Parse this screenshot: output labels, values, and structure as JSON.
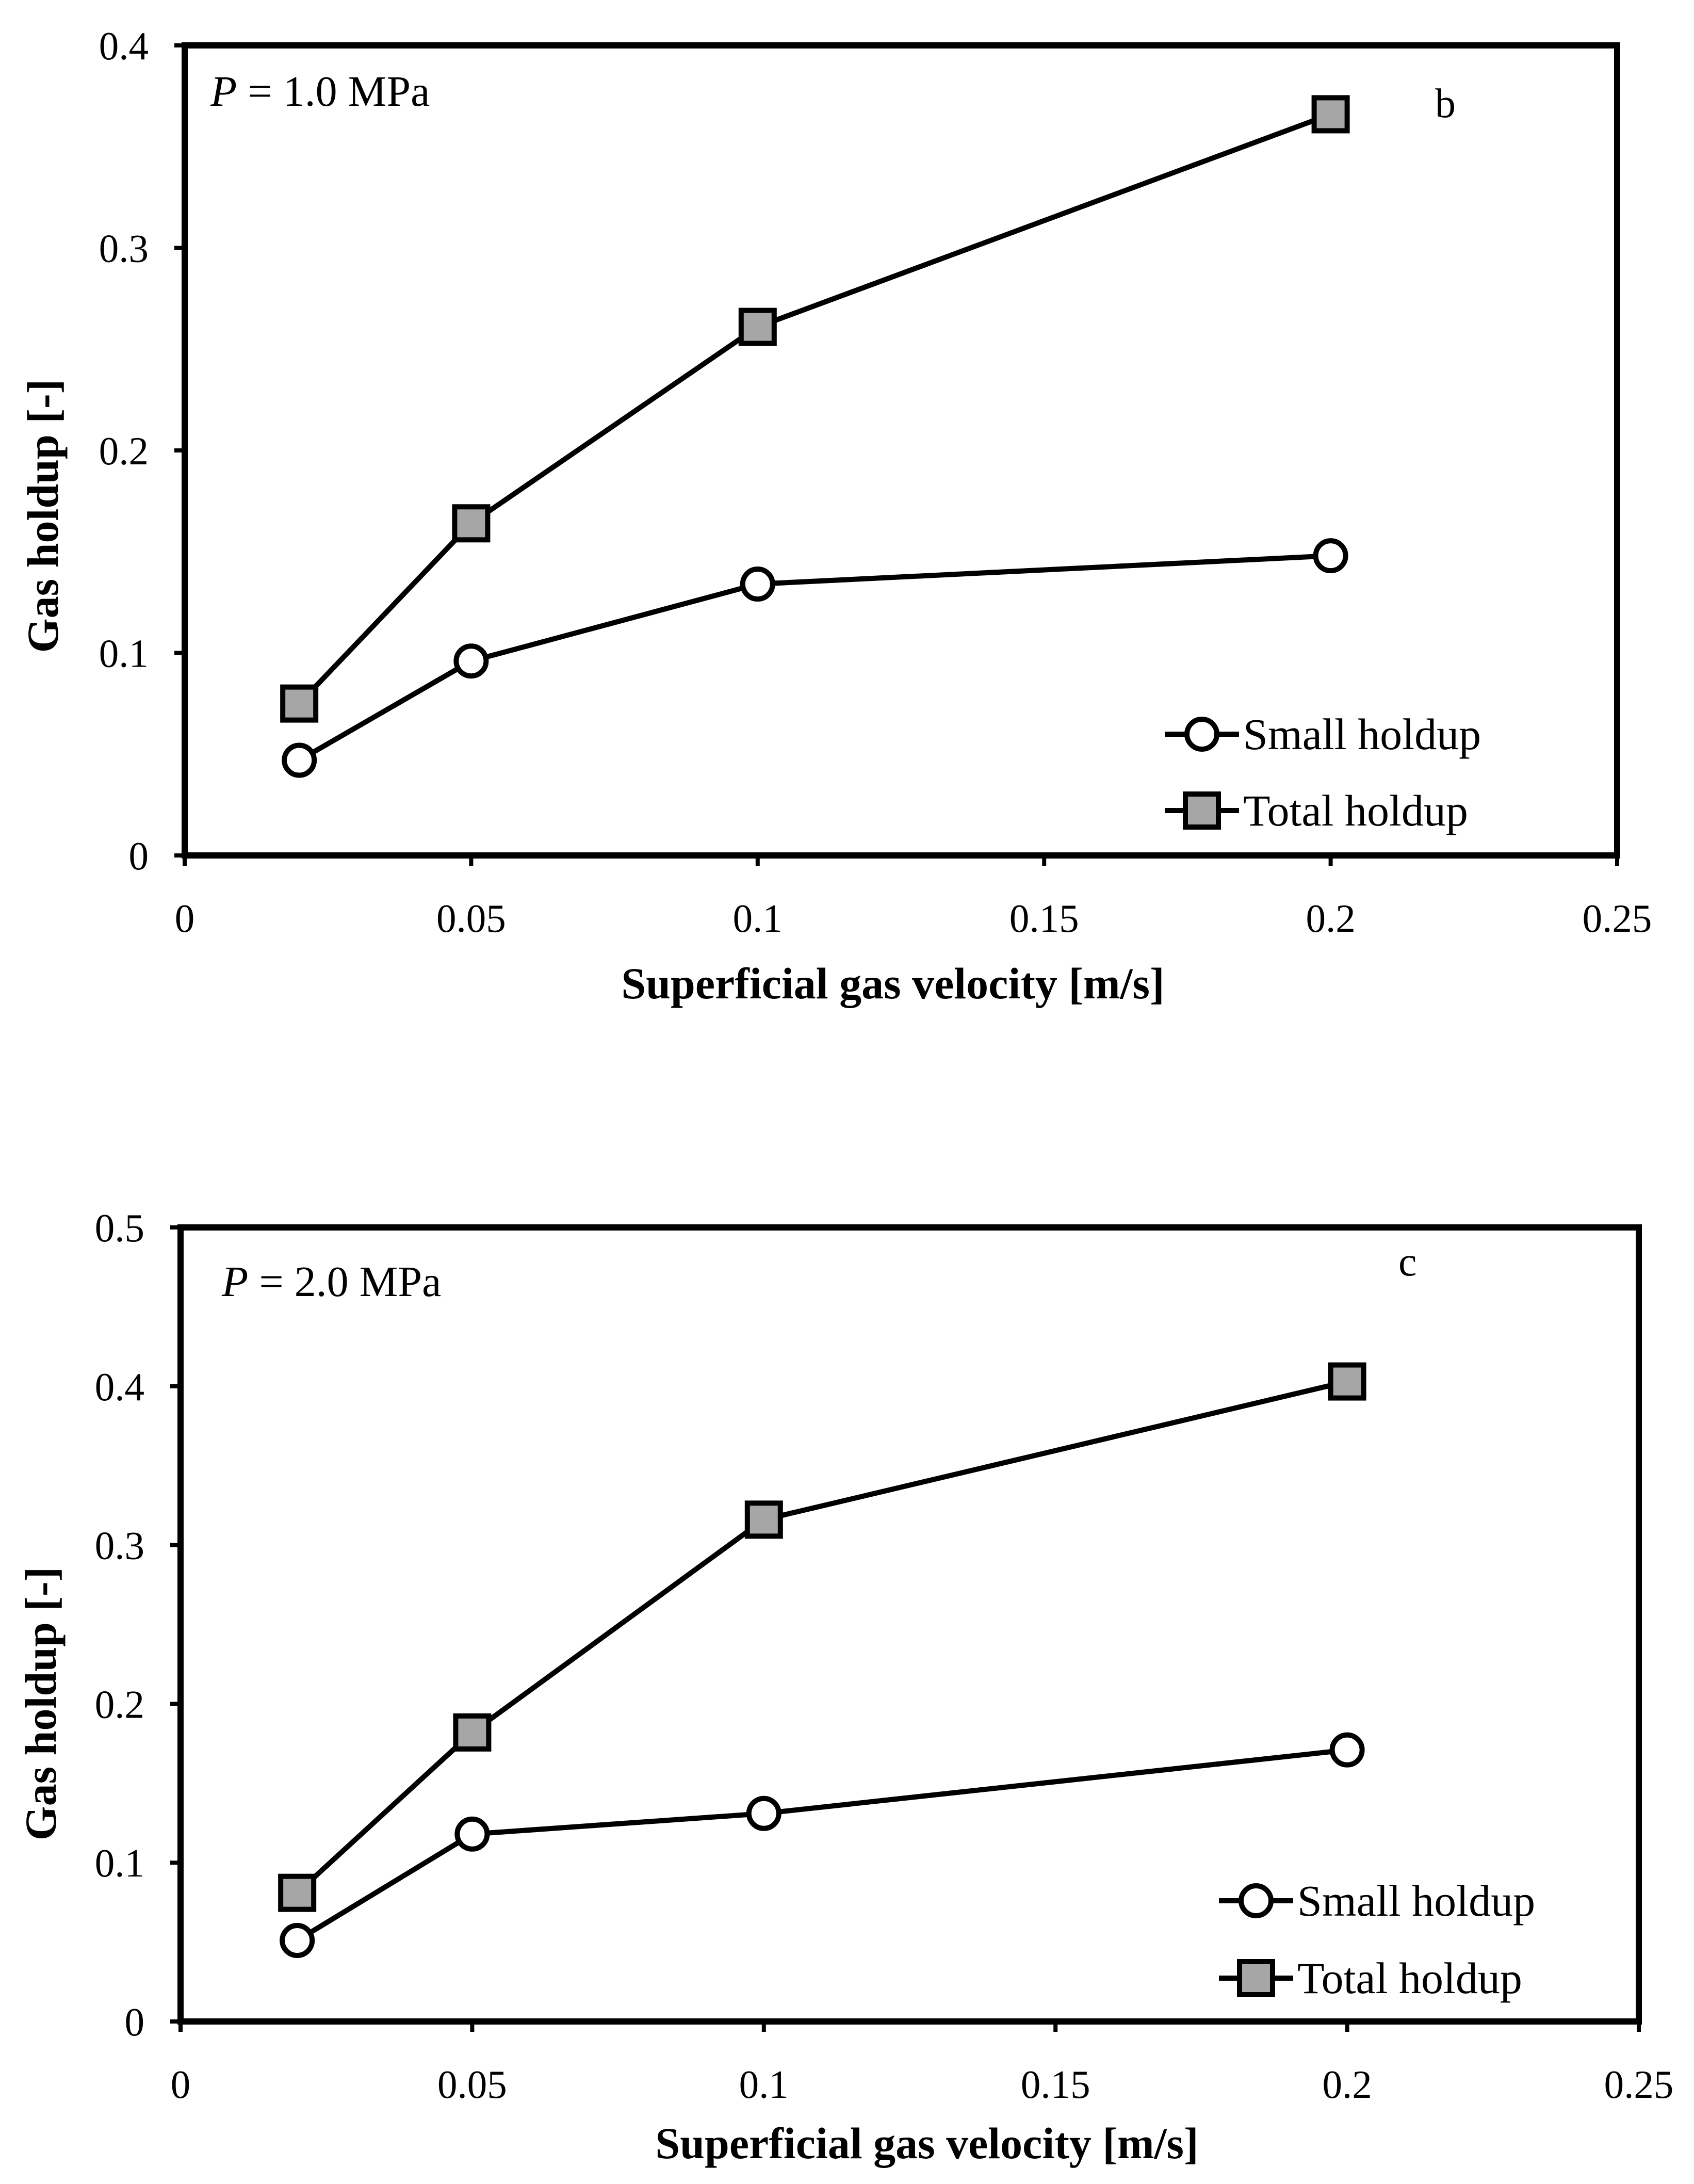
{
  "chart_data": [
    {
      "type": "line",
      "panel_label": "b",
      "annotation": {
        "symbol": "P",
        "rest": " = 1.0 MPa"
      },
      "xlabel": "Superficial gas velocity [m/s]",
      "ylabel": "Gas holdup [-]",
      "xlim": [
        0,
        0.25
      ],
      "ylim": [
        0,
        0.4
      ],
      "xticks": [
        "0",
        "0.05",
        "0.1",
        "0.15",
        "0.2",
        "0.25"
      ],
      "yticks": [
        "0",
        "0.1",
        "0.2",
        "0.3",
        "0.4"
      ],
      "legend_position": "bottom-right",
      "series": [
        {
          "name": "Small holdup",
          "marker": "circle",
          "x": [
            0.02,
            0.05,
            0.1,
            0.2
          ],
          "values": [
            0.047,
            0.096,
            0.134,
            0.148
          ]
        },
        {
          "name": "Total holdup",
          "marker": "square",
          "x": [
            0.02,
            0.05,
            0.1,
            0.2
          ],
          "values": [
            0.075,
            0.164,
            0.261,
            0.366
          ]
        }
      ]
    },
    {
      "type": "line",
      "panel_label": "c",
      "annotation": {
        "symbol": "P",
        "rest": " = 2.0 MPa"
      },
      "xlabel": "Superficial gas velocity [m/s]",
      "ylabel": "Gas holdup [-]",
      "xlim": [
        0,
        0.25
      ],
      "ylim": [
        0,
        0.5
      ],
      "xticks": [
        "0",
        "0.05",
        "0.1",
        "0.15",
        "0.2",
        "0.25"
      ],
      "yticks": [
        "0",
        "0.1",
        "0.2",
        "0.3",
        "0.4",
        "0.5"
      ],
      "legend_position": "bottom-right",
      "series": [
        {
          "name": "Small holdup",
          "marker": "circle",
          "x": [
            0.02,
            0.05,
            0.1,
            0.2
          ],
          "values": [
            0.051,
            0.118,
            0.131,
            0.171
          ]
        },
        {
          "name": "Total holdup",
          "marker": "square",
          "x": [
            0.02,
            0.05,
            0.1,
            0.2
          ],
          "values": [
            0.081,
            0.182,
            0.316,
            0.403
          ]
        }
      ]
    }
  ],
  "colors": {
    "line": "#000000",
    "circle_fill": "#ffffff",
    "square_fill": "#a6a6a6"
  }
}
